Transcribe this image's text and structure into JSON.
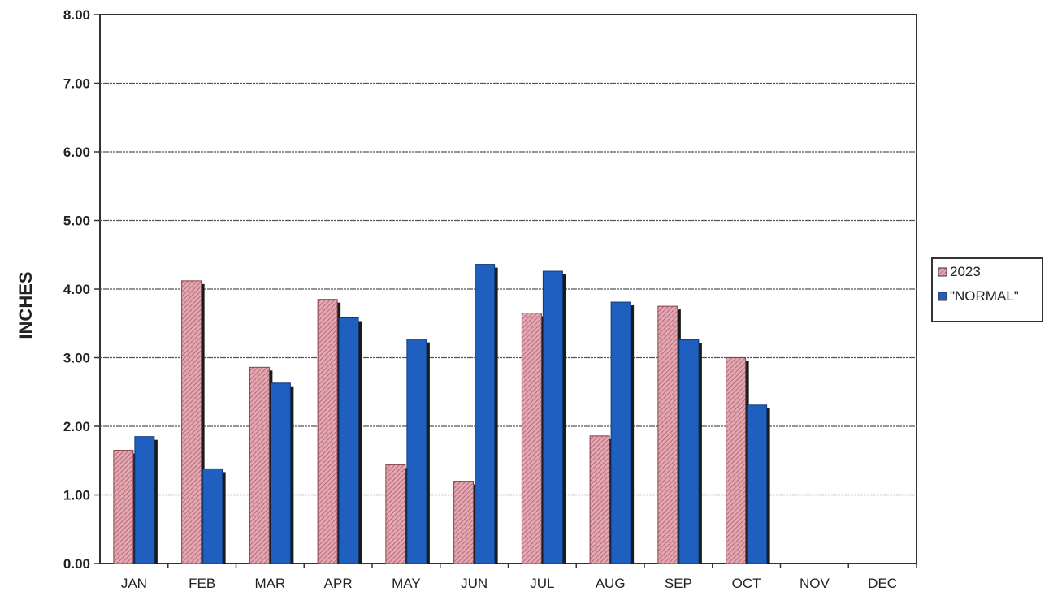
{
  "chart_data": {
    "type": "bar",
    "title": "",
    "xlabel": "",
    "ylabel": "INCHES",
    "ylim": [
      0,
      8
    ],
    "yticks": [
      "0.00",
      "1.00",
      "2.00",
      "3.00",
      "4.00",
      "5.00",
      "6.00",
      "7.00",
      "8.00"
    ],
    "grid": true,
    "legend_position": "right",
    "categories": [
      "JAN",
      "FEB",
      "MAR",
      "APR",
      "MAY",
      "JUN",
      "JUL",
      "AUG",
      "SEP",
      "OCT",
      "NOV",
      "DEC"
    ],
    "series": [
      {
        "name": "2023",
        "color": "#d58a96",
        "pattern": "hatched",
        "values": [
          1.65,
          4.12,
          2.86,
          3.85,
          1.44,
          1.2,
          3.65,
          1.86,
          3.75,
          3.0,
          null,
          null
        ]
      },
      {
        "name": "\"NORMAL\"",
        "color": "#1f5fc0",
        "pattern": "solid",
        "values": [
          1.85,
          1.38,
          2.63,
          3.58,
          3.27,
          4.36,
          4.26,
          3.81,
          3.26,
          2.31,
          null,
          null
        ]
      }
    ]
  }
}
